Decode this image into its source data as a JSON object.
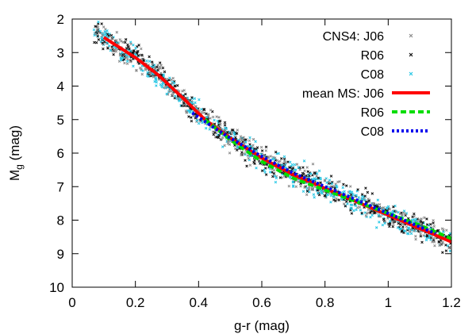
{
  "chart_data": {
    "type": "scatter",
    "xlabel": "g-r (mag)",
    "ylabel": "M",
    "ylabel_sub": "g",
    "ylabel_unit": " (mag)",
    "xlim": [
      0,
      1.2
    ],
    "ylim": [
      2,
      10
    ],
    "y_inverted": true,
    "xticks": [
      0,
      0.2,
      0.4,
      0.6,
      0.8,
      1.0,
      1.2
    ],
    "xtick_labels": [
      "0",
      "0.2",
      "0.4",
      "0.6",
      "0.8",
      "1",
      "1.2"
    ],
    "yticks": [
      2,
      3,
      4,
      5,
      6,
      7,
      8,
      9,
      10
    ],
    "ytick_labels": [
      "2",
      "3",
      "4",
      "5",
      "6",
      "7",
      "8",
      "9",
      "10"
    ],
    "legend_position": "top-right",
    "legend": {
      "scatter_header": "CNS4: J06",
      "scatter_r06": "R06",
      "scatter_c08": "C08",
      "line_header": "mean MS: J06",
      "line_r06": "R06",
      "line_c08": "C08"
    },
    "scatter_series": [
      {
        "key": "J06",
        "color": "#8c8c8c",
        "marker": "x"
      },
      {
        "key": "R06",
        "color": "#111111",
        "marker": "x"
      },
      {
        "key": "C08",
        "color": "#28c8e6",
        "marker": "x"
      }
    ],
    "scatter_points_approx": 1500,
    "scatter_x_range": [
      0.07,
      1.2
    ],
    "scatter_y_scatter_sigma": 0.18,
    "series": [
      {
        "key": "J06",
        "color": "#ff0000",
        "style": "solid",
        "x": [
          0.1,
          0.2,
          0.27,
          0.35,
          0.42,
          0.5,
          0.6,
          0.7,
          0.8,
          0.9,
          1.0,
          1.1,
          1.2
        ],
        "y": [
          2.55,
          3.15,
          3.65,
          4.35,
          5.0,
          5.55,
          6.15,
          6.65,
          7.05,
          7.45,
          7.85,
          8.25,
          8.65
        ]
      },
      {
        "key": "R06",
        "color": "#00dd00",
        "style": "dashed",
        "x": [
          0.42,
          0.5,
          0.6,
          0.7,
          0.8,
          0.9,
          1.0,
          1.1,
          1.2
        ],
        "y": [
          5.0,
          5.6,
          6.25,
          6.75,
          7.1,
          7.45,
          7.8,
          8.15,
          8.55
        ]
      },
      {
        "key": "C08",
        "color": "#0000ee",
        "style": "dotted",
        "x": [
          0.38,
          0.45,
          0.5,
          0.6,
          0.7,
          0.8,
          0.9,
          1.0,
          1.1,
          1.15
        ],
        "y": [
          4.8,
          5.25,
          5.55,
          6.1,
          6.6,
          7.0,
          7.4,
          7.8,
          8.2,
          8.4
        ]
      }
    ]
  }
}
